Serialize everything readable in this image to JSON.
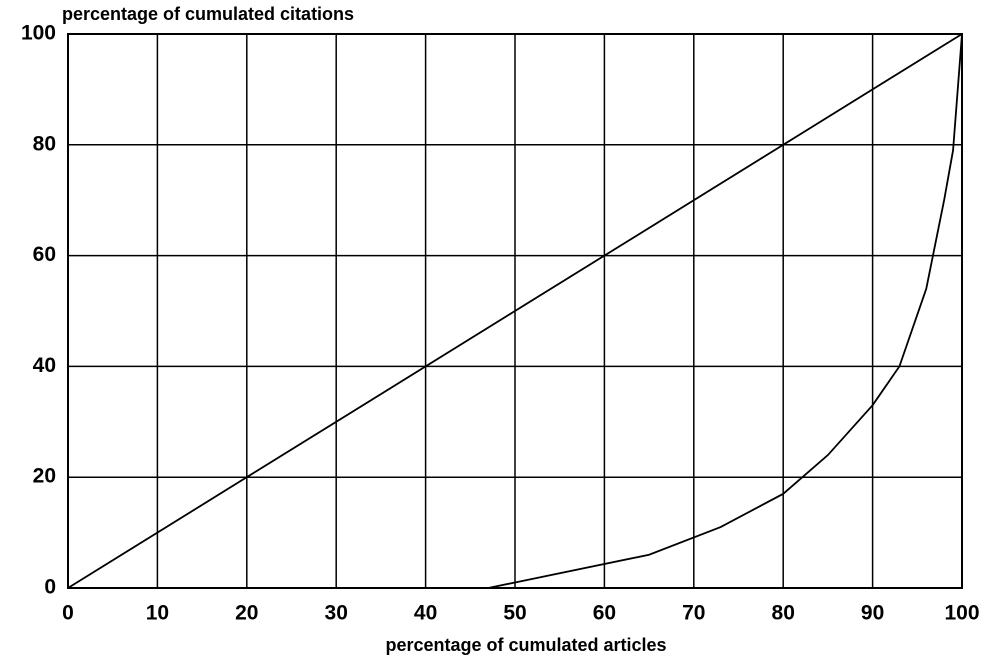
{
  "chart_data": {
    "type": "line",
    "ylabel": "percentage of cumulated citations",
    "xlabel": "percentage of cumulated articles",
    "xlim": [
      0,
      100
    ],
    "xticks": [
      0,
      10,
      20,
      30,
      40,
      50,
      60,
      70,
      80,
      90,
      100
    ],
    "ylim": [
      0,
      100
    ],
    "yticks": [
      0,
      20,
      40,
      60,
      80,
      100
    ],
    "grid": true,
    "series": [
      {
        "color": "#000000",
        "x": [
          0,
          100
        ],
        "values": [
          0,
          100
        ]
      },
      {
        "color": "#000000",
        "x": [
          0,
          47,
          50,
          65,
          73,
          80,
          85,
          90,
          93,
          96,
          98,
          99,
          100
        ],
        "values": [
          0,
          0,
          1,
          6,
          11,
          17,
          24,
          33,
          40,
          54,
          70,
          79,
          100
        ]
      }
    ]
  }
}
